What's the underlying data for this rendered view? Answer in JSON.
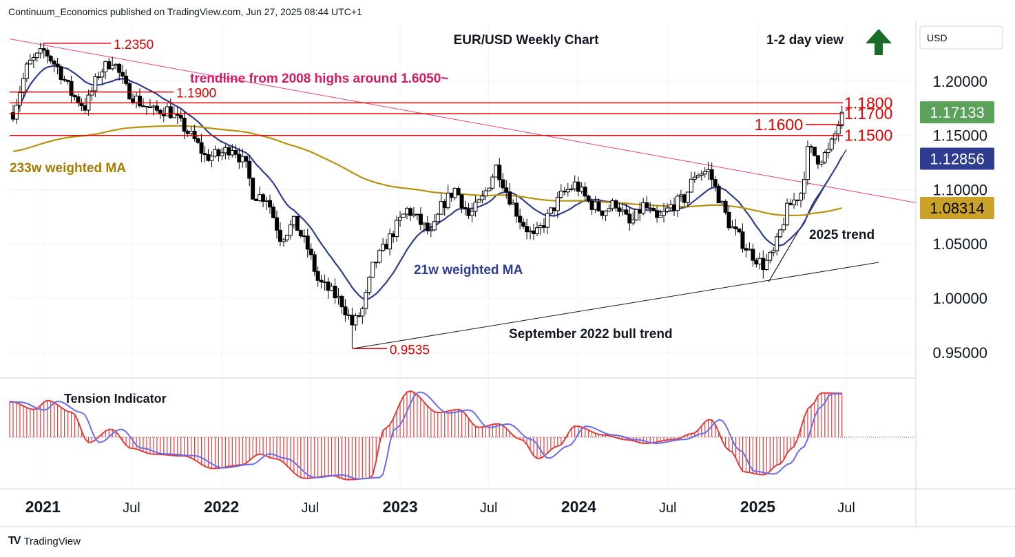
{
  "header": {
    "publisher_line": "Continuum_Economics published on TradingView.com, Jun 27, 2025 08:44 UTC+1"
  },
  "footer": {
    "brand": "TradingView",
    "logo_icon": "tradingview-logo-icon"
  },
  "currency_button": "USD",
  "chart_data": {
    "type": "candlestick",
    "title": "EUR/USD Weekly Chart",
    "view_label": "1-2 day view",
    "view_arrow_icon": "arrow-up-icon",
    "view_arrow_color": "#1b6b2b",
    "y_axis": {
      "ticks": [
        "1.20000",
        "1.15000",
        "1.10000",
        "1.05000",
        "1.00000",
        "0.95000"
      ],
      "tick_values": [
        1.2,
        1.15,
        1.1,
        1.05,
        1.0,
        0.95
      ],
      "range": [
        0.927,
        1.252
      ]
    },
    "x_axis": {
      "ticks": [
        {
          "label": "2021",
          "date": "2021-01-01",
          "bold": true
        },
        {
          "label": "Jul",
          "date": "2021-07-01",
          "bold": false
        },
        {
          "label": "2022",
          "date": "2022-01-01",
          "bold": true
        },
        {
          "label": "Jul",
          "date": "2022-07-01",
          "bold": false
        },
        {
          "label": "2023",
          "date": "2023-01-01",
          "bold": true
        },
        {
          "label": "Jul",
          "date": "2023-07-01",
          "bold": false
        },
        {
          "label": "2024",
          "date": "2024-01-01",
          "bold": true
        },
        {
          "label": "Jul",
          "date": "2024-07-01",
          "bold": false
        },
        {
          "label": "2025",
          "date": "2025-01-01",
          "bold": true
        },
        {
          "label": "Jul",
          "date": "2025-07-01",
          "bold": false
        }
      ],
      "range": [
        "2020-10-25",
        "2025-11-20"
      ]
    },
    "price_badges": [
      {
        "value": "1.17133",
        "price": 1.17133,
        "bg": "#5aa15a",
        "fg": "#ffffff"
      },
      {
        "value": "1.12856",
        "price": 1.12856,
        "bg": "#2e3d8f",
        "fg": "#ffffff"
      },
      {
        "value": "1.08314",
        "price": 1.08314,
        "bg": "#c9a227",
        "fg": "#000000"
      }
    ],
    "resistance_levels": [
      {
        "label": "1.1800",
        "price": 1.18
      },
      {
        "label": "1.1700",
        "price": 1.17
      },
      {
        "label": "1.1600",
        "price": 1.16
      },
      {
        "label": "1.1500",
        "price": 1.15
      }
    ],
    "historic_levels": [
      {
        "label": "1.2350",
        "price": 1.235,
        "from": "2021-01-01",
        "to": "2021-05-20"
      },
      {
        "label": "1.1900",
        "price": 1.19,
        "from": "2020-10-25",
        "to": "2021-09-25"
      },
      {
        "label": "0.9535",
        "price": 0.9535,
        "from": "2022-09-26",
        "to": "2022-12-05"
      }
    ],
    "annotations": {
      "trendline_2008": "trendline from 2008 highs around 1.6050~",
      "ma233_label": "233w weighted MA",
      "ma21_label": "21w weighted MA",
      "bull_trend_label": "September 2022 bull trend",
      "trend_2025_label": "2025 trend",
      "indicator_label": "Tension Indicator"
    },
    "colors": {
      "up_candle": "#ffffff",
      "down_candle": "#000000",
      "wick": "#000000",
      "level_line": "#e00000",
      "level_text": "#e00000",
      "trendline_2008": "#e8437a",
      "trend_text": "#d81b60",
      "ma21": "#2e3d8f",
      "ma233": "#b8900a",
      "ma233_text": "#a67c00",
      "tension_fast": "#e03c3c",
      "tension_slow": "#6b6bf0",
      "tension_hist": "#e03c3c"
    },
    "key_points": [
      {
        "date": "2021-01-06",
        "price": 1.235,
        "label": "high"
      },
      {
        "date": "2022-09-26",
        "price": 0.9535,
        "label": "low"
      },
      {
        "date": "2025-01-13",
        "price": 1.018,
        "label": "2025 low"
      },
      {
        "date": "2025-06-23",
        "price": 1.1713,
        "label": "last close"
      }
    ],
    "close_series": [
      {
        "date": "2020-11-01",
        "price": 1.171
      },
      {
        "date": "2020-12-01",
        "price": 1.215
      },
      {
        "date": "2021-01-04",
        "price": 1.228
      },
      {
        "date": "2021-02-01",
        "price": 1.212
      },
      {
        "date": "2021-03-01",
        "price": 1.188
      },
      {
        "date": "2021-03-29",
        "price": 1.176
      },
      {
        "date": "2021-04-26",
        "price": 1.208
      },
      {
        "date": "2021-05-24",
        "price": 1.22
      },
      {
        "date": "2021-06-21",
        "price": 1.192
      },
      {
        "date": "2021-07-19",
        "price": 1.18
      },
      {
        "date": "2021-08-16",
        "price": 1.172
      },
      {
        "date": "2021-09-13",
        "price": 1.174
      },
      {
        "date": "2021-10-11",
        "price": 1.16
      },
      {
        "date": "2021-11-08",
        "price": 1.145
      },
      {
        "date": "2021-11-29",
        "price": 1.13
      },
      {
        "date": "2021-12-27",
        "price": 1.132
      },
      {
        "date": "2022-01-24",
        "price": 1.14
      },
      {
        "date": "2022-02-21",
        "price": 1.12
      },
      {
        "date": "2022-03-07",
        "price": 1.095
      },
      {
        "date": "2022-04-04",
        "price": 1.093
      },
      {
        "date": "2022-05-02",
        "price": 1.055
      },
      {
        "date": "2022-05-30",
        "price": 1.07
      },
      {
        "date": "2022-06-27",
        "price": 1.045
      },
      {
        "date": "2022-07-18",
        "price": 1.015
      },
      {
        "date": "2022-08-15",
        "price": 1.005
      },
      {
        "date": "2022-09-05",
        "price": 0.995
      },
      {
        "date": "2022-09-26",
        "price": 0.975
      },
      {
        "date": "2022-10-17",
        "price": 0.99
      },
      {
        "date": "2022-11-07",
        "price": 1.03
      },
      {
        "date": "2022-11-28",
        "price": 1.045
      },
      {
        "date": "2022-12-19",
        "price": 1.062
      },
      {
        "date": "2023-01-16",
        "price": 1.082
      },
      {
        "date": "2023-02-06",
        "price": 1.072
      },
      {
        "date": "2023-03-06",
        "price": 1.058
      },
      {
        "date": "2023-03-27",
        "price": 1.085
      },
      {
        "date": "2023-04-24",
        "price": 1.101
      },
      {
        "date": "2023-05-22",
        "price": 1.075
      },
      {
        "date": "2023-06-19",
        "price": 1.092
      },
      {
        "date": "2023-07-17",
        "price": 1.122
      },
      {
        "date": "2023-08-07",
        "price": 1.098
      },
      {
        "date": "2023-09-04",
        "price": 1.072
      },
      {
        "date": "2023-10-02",
        "price": 1.055
      },
      {
        "date": "2023-10-30",
        "price": 1.075
      },
      {
        "date": "2023-11-27",
        "price": 1.095
      },
      {
        "date": "2023-12-25",
        "price": 1.105
      },
      {
        "date": "2024-01-22",
        "price": 1.088
      },
      {
        "date": "2024-02-19",
        "price": 1.08
      },
      {
        "date": "2024-03-18",
        "price": 1.088
      },
      {
        "date": "2024-04-15",
        "price": 1.067
      },
      {
        "date": "2024-05-13",
        "price": 1.086
      },
      {
        "date": "2024-06-10",
        "price": 1.071
      },
      {
        "date": "2024-07-08",
        "price": 1.085
      },
      {
        "date": "2024-08-05",
        "price": 1.092
      },
      {
        "date": "2024-08-26",
        "price": 1.115
      },
      {
        "date": "2024-09-23",
        "price": 1.117
      },
      {
        "date": "2024-10-14",
        "price": 1.092
      },
      {
        "date": "2024-11-04",
        "price": 1.068
      },
      {
        "date": "2024-11-25",
        "price": 1.055
      },
      {
        "date": "2024-12-16",
        "price": 1.042
      },
      {
        "date": "2025-01-13",
        "price": 1.03
      },
      {
        "date": "2025-02-03",
        "price": 1.042
      },
      {
        "date": "2025-03-03",
        "price": 1.083
      },
      {
        "date": "2025-03-31",
        "price": 1.098
      },
      {
        "date": "2025-04-14",
        "price": 1.138
      },
      {
        "date": "2025-05-05",
        "price": 1.128
      },
      {
        "date": "2025-05-26",
        "price": 1.135
      },
      {
        "date": "2025-06-09",
        "price": 1.152
      },
      {
        "date": "2025-06-23",
        "price": 1.171
      }
    ],
    "tension_series": [
      {
        "date": "2020-10-25",
        "value": 0.8
      },
      {
        "date": "2020-12-15",
        "value": 0.62
      },
      {
        "date": "2021-01-10",
        "value": 0.82
      },
      {
        "date": "2021-03-01",
        "value": 0.56
      },
      {
        "date": "2021-04-05",
        "value": -0.12
      },
      {
        "date": "2021-05-20",
        "value": 0.18
      },
      {
        "date": "2021-07-01",
        "value": -0.25
      },
      {
        "date": "2021-08-15",
        "value": -0.38
      },
      {
        "date": "2021-10-15",
        "value": -0.42
      },
      {
        "date": "2021-12-15",
        "value": -0.7
      },
      {
        "date": "2022-02-10",
        "value": -0.62
      },
      {
        "date": "2022-03-20",
        "value": -0.38
      },
      {
        "date": "2022-04-20",
        "value": -0.48
      },
      {
        "date": "2022-06-20",
        "value": -0.92
      },
      {
        "date": "2022-08-15",
        "value": -0.86
      },
      {
        "date": "2022-09-15",
        "value": -0.95
      },
      {
        "date": "2022-11-01",
        "value": -0.92
      },
      {
        "date": "2022-12-01",
        "value": 0.2
      },
      {
        "date": "2023-01-20",
        "value": 1.03
      },
      {
        "date": "2023-03-20",
        "value": 0.55
      },
      {
        "date": "2023-05-01",
        "value": 0.62
      },
      {
        "date": "2023-06-10",
        "value": 0.22
      },
      {
        "date": "2023-07-20",
        "value": 0.3
      },
      {
        "date": "2023-09-05",
        "value": -0.05
      },
      {
        "date": "2023-10-10",
        "value": -0.48
      },
      {
        "date": "2023-11-20",
        "value": -0.2
      },
      {
        "date": "2023-12-25",
        "value": 0.25
      },
      {
        "date": "2024-02-20",
        "value": 0.05
      },
      {
        "date": "2024-04-10",
        "value": -0.06
      },
      {
        "date": "2024-05-15",
        "value": -0.14
      },
      {
        "date": "2024-07-15",
        "value": -0.05
      },
      {
        "date": "2024-08-20",
        "value": 0.08
      },
      {
        "date": "2024-09-25",
        "value": 0.4
      },
      {
        "date": "2024-11-05",
        "value": -0.3
      },
      {
        "date": "2024-12-05",
        "value": -0.78
      },
      {
        "date": "2025-01-13",
        "value": -0.84
      },
      {
        "date": "2025-02-15",
        "value": -0.6
      },
      {
        "date": "2025-03-10",
        "value": -0.26
      },
      {
        "date": "2025-04-20",
        "value": 0.7
      },
      {
        "date": "2025-05-10",
        "value": 0.99
      },
      {
        "date": "2025-06-25",
        "value": 0.98
      }
    ]
  }
}
